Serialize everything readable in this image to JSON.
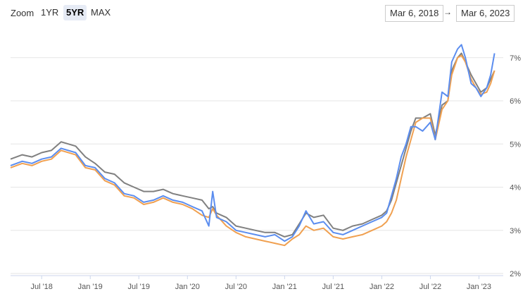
{
  "toolbar": {
    "zoom_label": "Zoom",
    "buttons": [
      "1YR",
      "5YR",
      "MAX"
    ],
    "active_button": "5YR",
    "date_from": "Mar 6, 2018",
    "arrow": "→",
    "date_to": "Mar 6, 2023"
  },
  "colors": {
    "series_a": "#5b8def",
    "series_b": "#f0a050",
    "series_c": "#808080",
    "grid": "#e6e6e6"
  },
  "chart_data": {
    "type": "line",
    "title": "",
    "xlabel": "",
    "ylabel": "",
    "x_ticks": [
      "Jul '18",
      "Jan '19",
      "Jul '19",
      "Jan '20",
      "Jul '20",
      "Jan '21",
      "Jul '21",
      "Jan '22",
      "Jul '22",
      "Jan '23"
    ],
    "y_ticks": [
      "2%",
      "3%",
      "4%",
      "5%",
      "6%",
      "7%"
    ],
    "ylim": [
      2,
      7.6
    ],
    "xlim": [
      2018.18,
      2023.25
    ],
    "grid": true,
    "legend": "none",
    "x": [
      2018.18,
      2018.3,
      2018.4,
      2018.5,
      2018.6,
      2018.7,
      2018.85,
      2018.95,
      2019.05,
      2019.15,
      2019.25,
      2019.35,
      2019.45,
      2019.55,
      2019.65,
      2019.75,
      2019.85,
      2019.95,
      2020.05,
      2020.15,
      2020.22,
      2020.26,
      2020.3,
      2020.4,
      2020.5,
      2020.6,
      2020.7,
      2020.8,
      2020.9,
      2021.0,
      2021.08,
      2021.15,
      2021.22,
      2021.3,
      2021.4,
      2021.5,
      2021.6,
      2021.7,
      2021.8,
      2021.9,
      2022.0,
      2022.05,
      2022.1,
      2022.15,
      2022.2,
      2022.25,
      2022.3,
      2022.35,
      2022.42,
      2022.5,
      2022.55,
      2022.62,
      2022.68,
      2022.72,
      2022.78,
      2022.82,
      2022.86,
      2022.92,
      2022.97,
      2023.02,
      2023.08,
      2023.12,
      2023.16
    ],
    "series": [
      {
        "values": [
          4.5,
          4.6,
          4.55,
          4.65,
          4.7,
          4.9,
          4.8,
          4.5,
          4.45,
          4.2,
          4.1,
          3.85,
          3.8,
          3.65,
          3.7,
          3.8,
          3.7,
          3.65,
          3.55,
          3.45,
          3.1,
          3.9,
          3.3,
          3.2,
          3.0,
          2.95,
          2.9,
          2.85,
          2.9,
          2.75,
          2.85,
          3.1,
          3.45,
          3.15,
          3.2,
          2.95,
          2.9,
          3.0,
          3.1,
          3.2,
          3.3,
          3.4,
          3.8,
          4.2,
          4.7,
          5.0,
          5.4,
          5.4,
          5.3,
          5.5,
          5.1,
          6.2,
          6.1,
          6.9,
          7.2,
          7.3,
          7.0,
          6.4,
          6.3,
          6.1,
          6.3,
          6.6,
          7.1
        ]
      },
      {
        "values": [
          4.45,
          4.55,
          4.5,
          4.6,
          4.65,
          4.85,
          4.75,
          4.45,
          4.4,
          4.15,
          4.05,
          3.8,
          3.75,
          3.6,
          3.65,
          3.75,
          3.65,
          3.6,
          3.5,
          3.35,
          3.3,
          3.5,
          3.35,
          3.1,
          2.95,
          2.85,
          2.8,
          2.75,
          2.7,
          2.65,
          2.8,
          2.9,
          3.1,
          3.0,
          3.05,
          2.85,
          2.8,
          2.85,
          2.9,
          3.0,
          3.1,
          3.2,
          3.4,
          3.7,
          4.2,
          4.7,
          5.1,
          5.5,
          5.6,
          5.6,
          5.1,
          5.8,
          6.0,
          6.6,
          7.0,
          7.05,
          6.9,
          6.5,
          6.3,
          6.15,
          6.2,
          6.4,
          6.7
        ]
      },
      {
        "values": [
          4.65,
          4.75,
          4.7,
          4.8,
          4.85,
          5.05,
          4.95,
          4.7,
          4.55,
          4.35,
          4.3,
          4.1,
          4.0,
          3.9,
          3.9,
          3.95,
          3.85,
          3.8,
          3.75,
          3.7,
          3.5,
          3.55,
          3.4,
          3.3,
          3.1,
          3.05,
          3.0,
          2.95,
          2.95,
          2.85,
          2.9,
          3.15,
          3.4,
          3.3,
          3.35,
          3.05,
          3.0,
          3.1,
          3.15,
          3.25,
          3.35,
          3.45,
          3.7,
          4.1,
          4.5,
          4.9,
          5.3,
          5.6,
          5.6,
          5.7,
          5.2,
          5.9,
          6.0,
          6.7,
          7.0,
          7.1,
          6.9,
          6.6,
          6.4,
          6.2,
          6.3,
          6.5,
          6.7
        ]
      }
    ]
  }
}
